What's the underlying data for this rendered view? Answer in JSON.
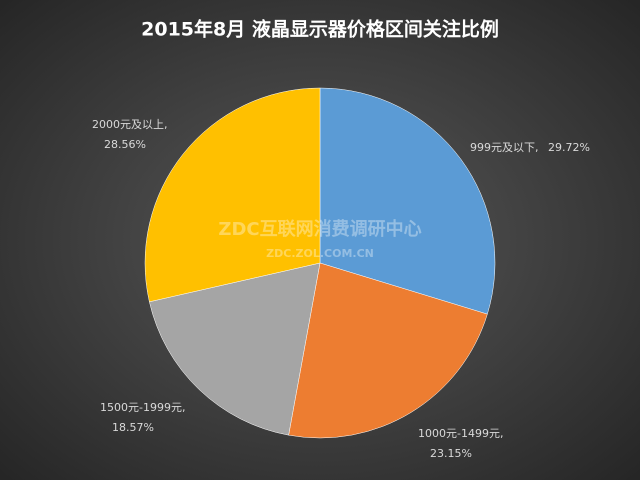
{
  "chart_data": {
    "type": "pie",
    "title": "2015年8月  液晶显示器价格区间关注比例",
    "categories": [
      "999元及以下,",
      "1000元-1499元,",
      "1500元-1999元,",
      "2000元及以上,"
    ],
    "values": [
      29.72,
      23.15,
      18.57,
      28.56
    ],
    "value_labels": [
      "29.72%",
      "23.15%",
      "18.57%",
      "28.56%"
    ],
    "colors": [
      "#5b9bd5",
      "#ed7d31",
      "#a5a5a5",
      "#ffc000"
    ],
    "watermark": [
      "ZDC互联网消费调研中心",
      "ZDC.ZOL.COM.CN"
    ]
  }
}
